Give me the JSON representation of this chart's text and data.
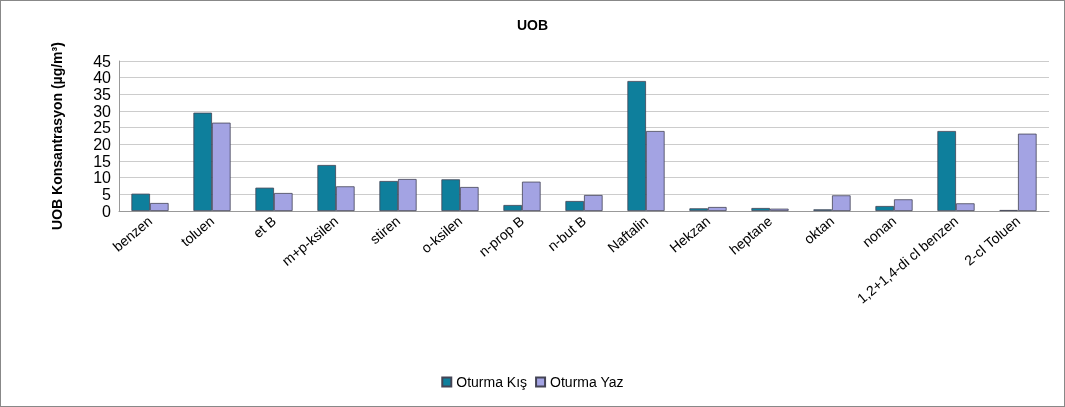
{
  "chart_data": {
    "type": "bar",
    "title": "UOB",
    "ylabel": "UOB Konsantrasyon (µg/m³)",
    "categories": [
      "benzen",
      "toluen",
      "et B",
      "m+p-ksilen",
      "stiren",
      "o-ksilen",
      "n-prop B",
      "n-but B",
      "Naftalin",
      "Hekzan",
      "heptane",
      "oktan",
      "nonan",
      "1,2+1,4-di cl benzen",
      "2-cl Toluen"
    ],
    "series": [
      {
        "name": "Oturma Kış",
        "color": "#0e7f9c",
        "values": [
          5.2,
          29.5,
          7,
          13.8,
          9,
          9.5,
          1.8,
          3,
          39,
          0.8,
          0.9,
          0.5,
          1.5,
          24,
          0.3
        ]
      },
      {
        "name": "Oturma Yaz",
        "color": "#a3a3e3",
        "values": [
          2.4,
          26.5,
          5.4,
          7.4,
          9.6,
          7.2,
          8.8,
          4.8,
          24,
          1.2,
          0.7,
          4.7,
          3.5,
          2.3,
          23.2
        ]
      }
    ],
    "ylim": [
      0,
      45
    ],
    "yticks": [
      0,
      5,
      10,
      15,
      20,
      25,
      30,
      35,
      40,
      45
    ],
    "grid": "y",
    "legend": "bottom"
  }
}
